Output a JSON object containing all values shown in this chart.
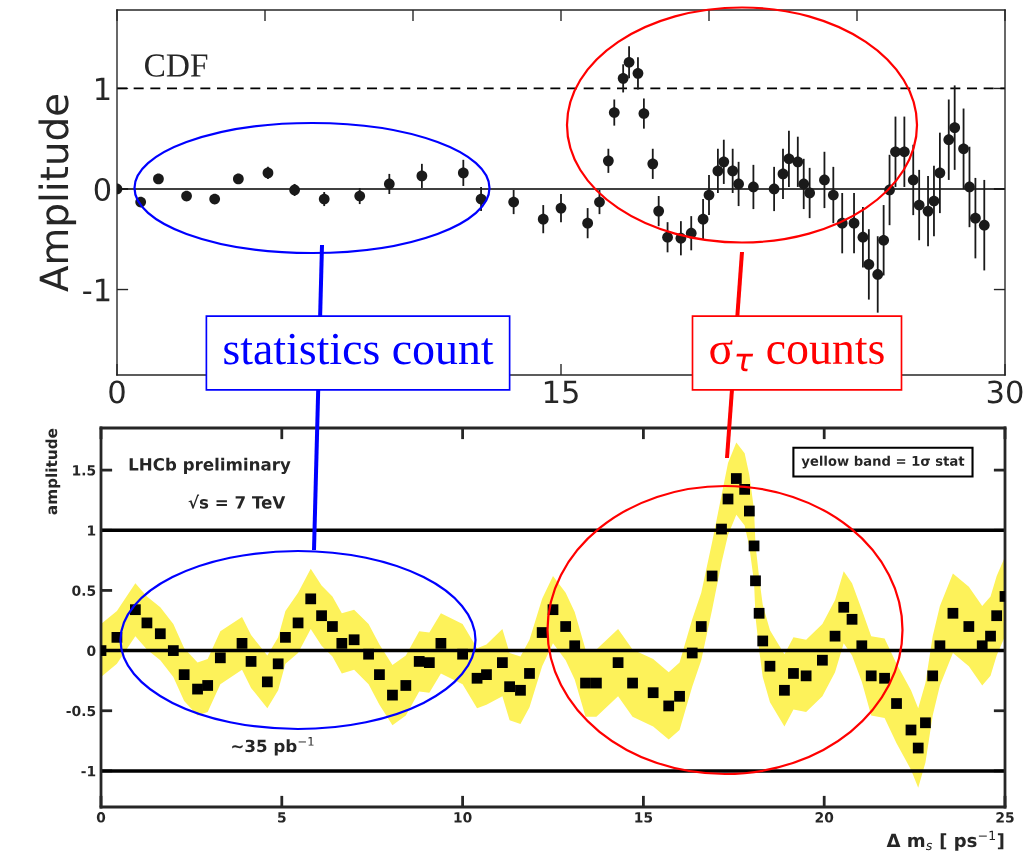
{
  "chart_data": [
    {
      "type": "scatter",
      "ylabel": "Amplitude",
      "annotations": [
        "CDF",
        "statistics count",
        "σ$_{τ}$ counts"
      ],
      "x": [
        0,
        0.8,
        1.4,
        2.35,
        3.3,
        4.1,
        5.1,
        6.0,
        7.0,
        8.2,
        9.2,
        10.3,
        11.7,
        12.3,
        13.4,
        14.4,
        15.0,
        15.9,
        16.3,
        16.6,
        16.8,
        17.1,
        17.3,
        17.6,
        17.8,
        18.1,
        18.3,
        18.6,
        19.05,
        19.4,
        19.8,
        20.0,
        20.3,
        20.5,
        20.8,
        21.0,
        21.5,
        22.2,
        22.5,
        22.7,
        23.0,
        23.2,
        23.4,
        23.9,
        24.2,
        24.5,
        24.9,
        25.2,
        25.4,
        25.7,
        25.9,
        26.1,
        26.3,
        26.6,
        26.9,
        27.1,
        27.4,
        27.6,
        27.8,
        28.1,
        28.3,
        28.6,
        28.8,
        29.0,
        29.3
      ],
      "values": [
        0,
        -0.13,
        0.1,
        -0.07,
        -0.1,
        0.1,
        0.16,
        -0.01,
        -0.1,
        -0.07,
        0.05,
        0.13,
        0.16,
        -0.1,
        -0.13,
        -0.3,
        -0.19,
        -0.34,
        -0.13,
        0.28,
        0.76,
        1.1,
        1.26,
        1.15,
        0.75,
        0.25,
        -0.22,
        -0.48,
        -0.49,
        -0.44,
        -0.3,
        -0.06,
        0.18,
        0.27,
        0.18,
        0.05,
        0.02,
        0,
        0.15,
        0.3,
        0.27,
        0.05,
        -0.04,
        0.09,
        -0.06,
        -0.34,
        -0.34,
        -0.48,
        -0.75,
        -0.85,
        -0.51,
        -0.01,
        0.37,
        0.37,
        0.09,
        -0.16,
        -0.22,
        -0.12,
        0.16,
        0.49,
        0.61,
        0.4,
        0.02,
        -0.29,
        -0.36
      ],
      "errors": [
        0.03,
        0.04,
        0.04,
        0.04,
        0.05,
        0.05,
        0.06,
        0.06,
        0.07,
        0.08,
        0.1,
        0.12,
        0.13,
        0.12,
        0.12,
        0.14,
        0.14,
        0.15,
        0.12,
        0.12,
        0.13,
        0.14,
        0.16,
        0.16,
        0.15,
        0.15,
        0.15,
        0.15,
        0.17,
        0.17,
        0.2,
        0.2,
        0.22,
        0.22,
        0.22,
        0.22,
        0.22,
        0.22,
        0.25,
        0.28,
        0.25,
        0.25,
        0.25,
        0.28,
        0.28,
        0.3,
        0.3,
        0.3,
        0.35,
        0.38,
        0.35,
        0.35,
        0.35,
        0.35,
        0.35,
        0.35,
        0.35,
        0.35,
        0.4,
        0.4,
        0.42,
        0.4,
        0.4,
        0.4,
        0.45
      ],
      "color": "#1a1a1a",
      "marker": "circle",
      "xlim": [
        0,
        30
      ],
      "xticks": [
        0,
        {
          "value": 5,
          "label": null
        },
        {
          "value": 10,
          "label": null
        },
        15,
        {
          "value": 20,
          "label": null
        },
        {
          "value": 25,
          "label": null
        },
        30
      ],
      "ylim": [
        -1.85,
        1.78
      ],
      "yticks": [
        -1,
        0,
        1
      ],
      "ref_lines": [
        {
          "axis": "y",
          "value": 1,
          "line_style": "dashed"
        },
        {
          "axis": "y",
          "value": 0,
          "line_style": "solid"
        }
      ],
      "grid": false,
      "legend": false
    },
    {
      "type": "scatter",
      "xlabel": "Δ m$_{s}$ [ ps$^{−1}$]",
      "ylabel": "amplitude",
      "annotations": [
        "LHCb preliminary",
        "√s = 7 TeV",
        "~35 pb$^{−1}$",
        "yellow band = 1σ stat"
      ],
      "x": [
        0,
        0.44,
        0.95,
        1.27,
        1.64,
        2.0,
        2.3,
        2.67,
        2.95,
        3.3,
        3.9,
        4.15,
        4.6,
        4.9,
        5.1,
        5.45,
        5.8,
        6.1,
        6.4,
        6.66,
        7.0,
        7.4,
        7.7,
        8.06,
        8.43,
        8.8,
        9.08,
        9.4,
        10.0,
        10.4,
        10.66,
        11.1,
        11.3,
        11.6,
        11.85,
        12.2,
        12.5,
        12.85,
        13.1,
        13.4,
        13.7,
        14.3,
        14.7,
        15.27,
        15.7,
        16.0,
        16.35,
        16.6,
        16.9,
        17.16,
        17.34,
        17.57,
        17.8,
        17.93,
        18.06,
        18.1,
        18.2,
        18.3,
        18.5,
        18.9,
        19.15,
        19.5,
        19.95,
        20.3,
        20.54,
        20.77,
        21.04,
        21.3,
        21.67,
        22.0,
        22.4,
        22.6,
        22.8,
        23.0,
        23.2,
        23.56,
        24.0,
        24.37,
        24.6,
        24.77,
        25.0
      ],
      "series": [
        {
          "color": "#000000",
          "values": [
            0,
            0.11,
            0.34,
            0.23,
            0.14,
            0,
            -0.2,
            -0.32,
            -0.29,
            -0.06,
            0.06,
            -0.09,
            -0.26,
            -0.11,
            0.11,
            0.23,
            0.43,
            0.29,
            0.2,
            0.06,
            0.09,
            -0.03,
            -0.2,
            -0.37,
            -0.29,
            -0.09,
            -0.1,
            0.06,
            -0.03,
            -0.23,
            -0.2,
            -0.1,
            -0.3,
            -0.33,
            -0.19,
            0.15,
            0.34,
            0.2,
            0.04,
            -0.27,
            -0.27,
            -0.1,
            -0.27,
            -0.35,
            -0.46,
            -0.38,
            -0.02,
            0.2,
            0.62,
            1.01,
            1.26,
            1.43,
            1.34,
            1.16,
            0.87,
            0.58,
            0.31,
            0.08,
            -0.13,
            -0.33,
            -0.19,
            -0.21,
            -0.08,
            0.12,
            0.36,
            0.26,
            0.04,
            -0.21,
            -0.23,
            -0.44,
            -0.66,
            -0.81,
            -0.6,
            -0.21,
            0.04,
            0.31,
            0.2,
            0.04,
            0.12,
            0.29,
            0.45
          ],
          "lower": [
            -0.22,
            -0.11,
            0.12,
            0.01,
            -0.08,
            -0.22,
            -0.42,
            -0.54,
            -0.51,
            -0.28,
            -0.16,
            -0.31,
            -0.48,
            -0.33,
            -0.11,
            -0.02,
            0.18,
            0.04,
            -0.05,
            -0.19,
            -0.16,
            -0.28,
            -0.45,
            -0.62,
            -0.54,
            -0.34,
            -0.35,
            -0.19,
            -0.28,
            -0.48,
            -0.45,
            -0.38,
            -0.58,
            -0.61,
            -0.47,
            -0.13,
            0.06,
            -0.08,
            -0.24,
            -0.55,
            -0.55,
            -0.38,
            -0.55,
            -0.63,
            -0.74,
            -0.66,
            -0.3,
            -0.08,
            0.34,
            0.73,
            0.96,
            1.13,
            1.04,
            0.86,
            0.57,
            0.28,
            0.01,
            -0.22,
            -0.43,
            -0.63,
            -0.49,
            -0.51,
            -0.38,
            -0.18,
            0.06,
            -0.04,
            -0.26,
            -0.54,
            -0.56,
            -0.77,
            -0.99,
            -1.14,
            -0.93,
            -0.54,
            -0.29,
            -0.02,
            -0.13,
            -0.29,
            -0.21,
            -0.04,
            0.12
          ],
          "upper": [
            0.22,
            0.33,
            0.56,
            0.45,
            0.36,
            0.22,
            0.02,
            -0.1,
            -0.07,
            0.16,
            0.28,
            0.13,
            -0.04,
            0.11,
            0.33,
            0.48,
            0.68,
            0.54,
            0.45,
            0.31,
            0.34,
            0.22,
            0.05,
            -0.12,
            -0.04,
            0.16,
            0.15,
            0.31,
            0.22,
            0.02,
            0.05,
            0.18,
            -0.02,
            -0.05,
            0.09,
            0.43,
            0.62,
            0.48,
            0.32,
            0.01,
            0.01,
            0.18,
            0.01,
            -0.07,
            -0.18,
            -0.1,
            0.26,
            0.48,
            0.9,
            1.29,
            1.56,
            1.73,
            1.64,
            1.46,
            1.17,
            0.88,
            0.61,
            0.38,
            0.17,
            -0.03,
            0.11,
            0.09,
            0.22,
            0.42,
            0.66,
            0.56,
            0.34,
            0.12,
            0.1,
            -0.11,
            -0.33,
            -0.48,
            -0.27,
            0.12,
            0.37,
            0.64,
            0.53,
            0.37,
            0.45,
            0.62,
            0.78
          ]
        }
      ],
      "marker": "square",
      "xlim": [
        0,
        25
      ],
      "xticks": [
        0,
        5,
        10,
        15,
        20,
        25
      ],
      "ylim": [
        -1.3,
        1.85
      ],
      "yticks": [
        -1,
        -0.5,
        0,
        0.5,
        1,
        1.5
      ],
      "ref_lines": [
        {
          "axis": "y",
          "value": 1,
          "line_style": "solid"
        },
        {
          "axis": "y",
          "value": 0,
          "line_style": "solid"
        },
        {
          "axis": "y",
          "value": -1,
          "line_style": "solid"
        }
      ],
      "grid": false,
      "legend": false
    }
  ]
}
